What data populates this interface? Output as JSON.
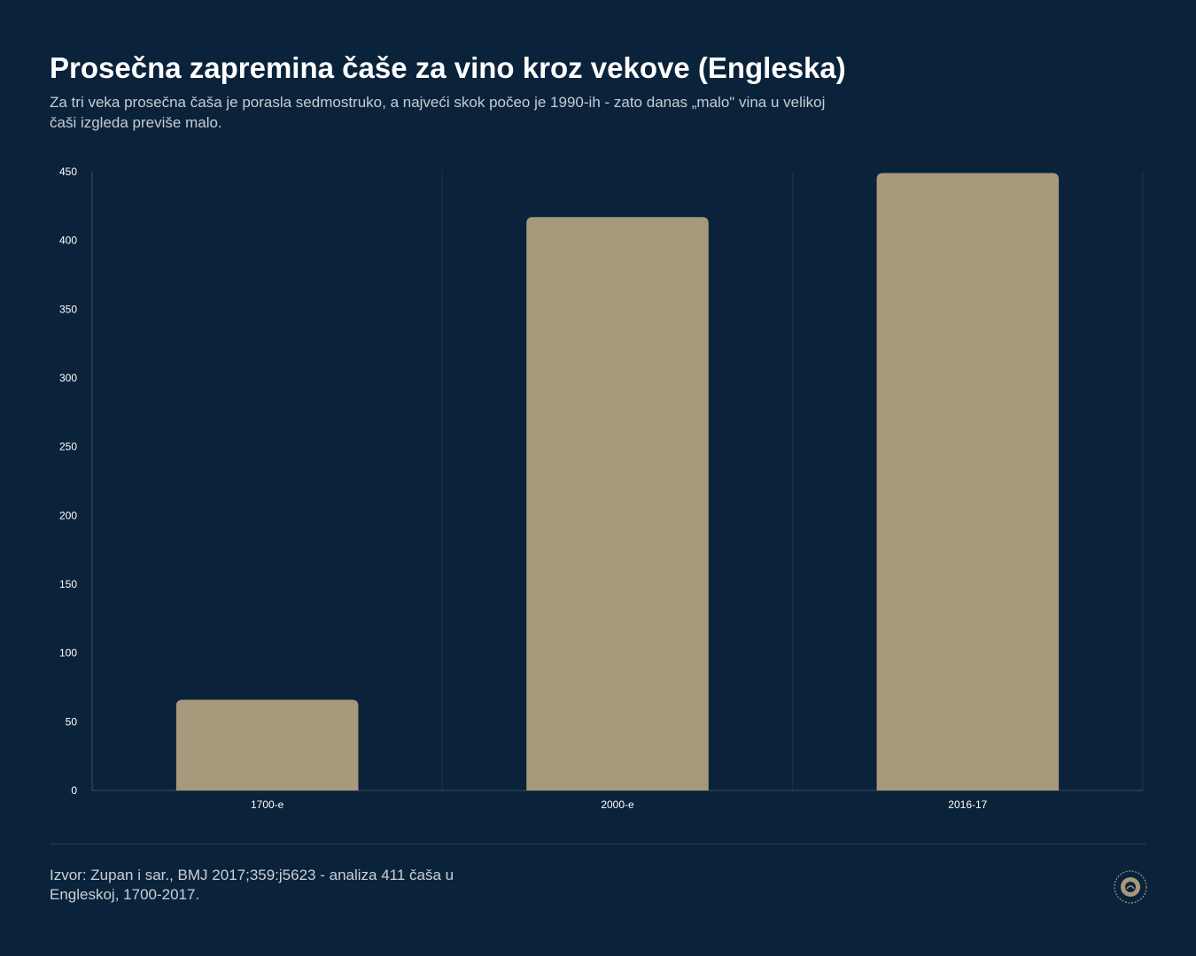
{
  "header": {
    "title": "Prosečna zapremina čaše za vino kroz vekove (Engleska)",
    "subtitle": "Za tri veka prosečna čaša je porasla sedmostruko, a najveći skok počeo je 1990-ih - zato danas „malo\" vina u velikoj čaši izgleda previše malo."
  },
  "chart_data": {
    "type": "bar",
    "categories": [
      "1700-e",
      "2000-e",
      "2016-17"
    ],
    "values": [
      66,
      417,
      449
    ],
    "title": "",
    "xlabel": "",
    "ylabel": "",
    "ylim": [
      0,
      450
    ],
    "yticks": [
      0,
      50,
      100,
      150,
      200,
      250,
      300,
      350,
      400,
      450
    ],
    "grid": "vertical separators between categories",
    "legend": "none",
    "bar_color": "#a8987c"
  },
  "footer": {
    "source": "Izvor: Zupan i sar., BMJ 2017;359:j5623 - analiza 411 čaša u Engleskoj, 1700-2017."
  },
  "colors": {
    "background": "#0a233a",
    "bar": "#a8987c",
    "axis": "#3a4f63",
    "text": "#ffffff"
  }
}
